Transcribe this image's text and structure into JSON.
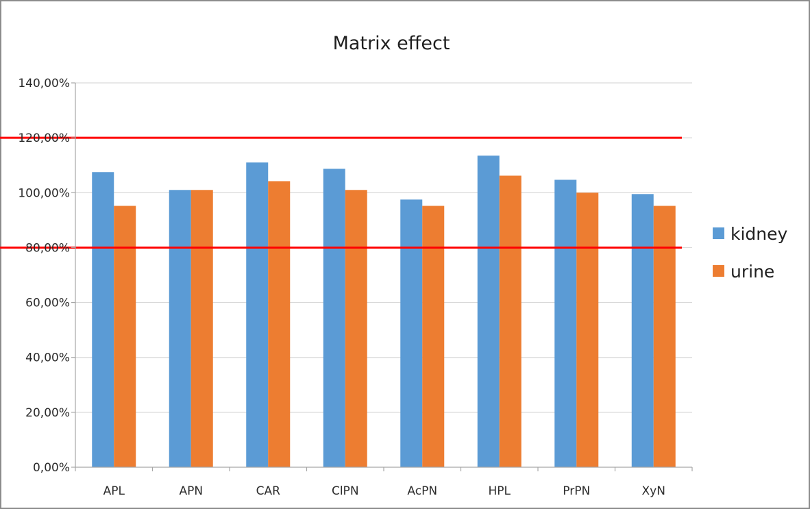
{
  "chart_data": {
    "type": "bar",
    "title": "Matrix effect",
    "categories": [
      "APL",
      "APN",
      "CAR",
      "ClPN",
      "AcPN",
      "HPL",
      "PrPN",
      "XyN"
    ],
    "series": [
      {
        "name": "kidney",
        "color": "#5b9bd5",
        "values": [
          1.075,
          1.01,
          1.11,
          1.087,
          0.975,
          1.135,
          1.047,
          0.995
        ]
      },
      {
        "name": "urine",
        "color": "#ed7d31",
        "values": [
          0.952,
          1.01,
          1.042,
          1.01,
          0.952,
          1.062,
          1.0,
          0.952
        ]
      }
    ],
    "reference_lines": [
      {
        "value": 1.2,
        "color": "#ff0000"
      },
      {
        "value": 0.8,
        "color": "#ff0000"
      }
    ],
    "ylim": [
      0,
      1.4
    ],
    "yticks": [
      "0,00%",
      "20,00%",
      "40,00%",
      "60,00%",
      "80,00%",
      "100,00%",
      "120,00%",
      "140,00%"
    ],
    "grid": true,
    "legend_position": "right",
    "xlabel": "",
    "ylabel": ""
  }
}
